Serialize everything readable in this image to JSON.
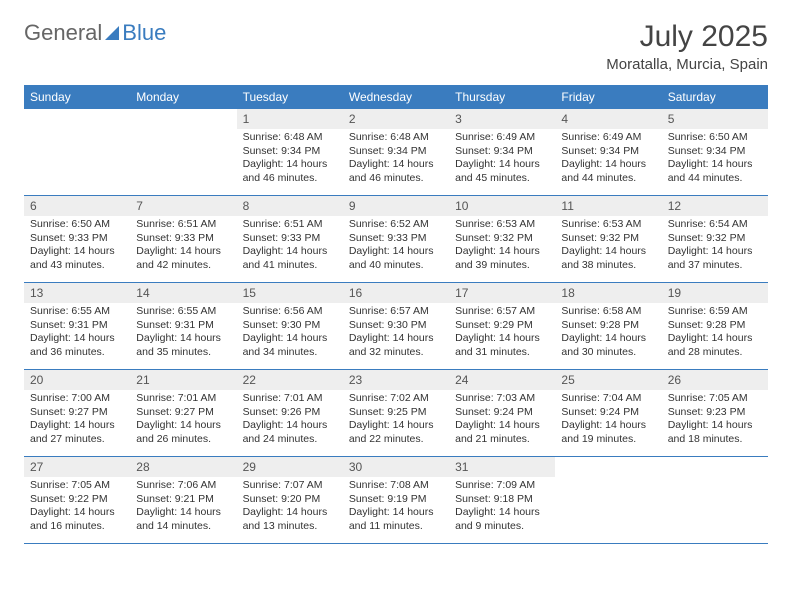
{
  "logo": {
    "part1": "General",
    "part2": "Blue"
  },
  "title": "July 2025",
  "location": "Moratalla, Murcia, Spain",
  "colors": {
    "header_bg": "#3a7cbf",
    "header_text": "#ffffff",
    "daynum_bg": "#eeeeee",
    "border": "#3a7cbf",
    "text": "#333333"
  },
  "daynames": [
    "Sunday",
    "Monday",
    "Tuesday",
    "Wednesday",
    "Thursday",
    "Friday",
    "Saturday"
  ],
  "weeks": [
    [
      null,
      null,
      {
        "n": "1",
        "sr": "6:48 AM",
        "ss": "9:34 PM",
        "dl": "14 hours and 46 minutes."
      },
      {
        "n": "2",
        "sr": "6:48 AM",
        "ss": "9:34 PM",
        "dl": "14 hours and 46 minutes."
      },
      {
        "n": "3",
        "sr": "6:49 AM",
        "ss": "9:34 PM",
        "dl": "14 hours and 45 minutes."
      },
      {
        "n": "4",
        "sr": "6:49 AM",
        "ss": "9:34 PM",
        "dl": "14 hours and 44 minutes."
      },
      {
        "n": "5",
        "sr": "6:50 AM",
        "ss": "9:34 PM",
        "dl": "14 hours and 44 minutes."
      }
    ],
    [
      {
        "n": "6",
        "sr": "6:50 AM",
        "ss": "9:33 PM",
        "dl": "14 hours and 43 minutes."
      },
      {
        "n": "7",
        "sr": "6:51 AM",
        "ss": "9:33 PM",
        "dl": "14 hours and 42 minutes."
      },
      {
        "n": "8",
        "sr": "6:51 AM",
        "ss": "9:33 PM",
        "dl": "14 hours and 41 minutes."
      },
      {
        "n": "9",
        "sr": "6:52 AM",
        "ss": "9:33 PM",
        "dl": "14 hours and 40 minutes."
      },
      {
        "n": "10",
        "sr": "6:53 AM",
        "ss": "9:32 PM",
        "dl": "14 hours and 39 minutes."
      },
      {
        "n": "11",
        "sr": "6:53 AM",
        "ss": "9:32 PM",
        "dl": "14 hours and 38 minutes."
      },
      {
        "n": "12",
        "sr": "6:54 AM",
        "ss": "9:32 PM",
        "dl": "14 hours and 37 minutes."
      }
    ],
    [
      {
        "n": "13",
        "sr": "6:55 AM",
        "ss": "9:31 PM",
        "dl": "14 hours and 36 minutes."
      },
      {
        "n": "14",
        "sr": "6:55 AM",
        "ss": "9:31 PM",
        "dl": "14 hours and 35 minutes."
      },
      {
        "n": "15",
        "sr": "6:56 AM",
        "ss": "9:30 PM",
        "dl": "14 hours and 34 minutes."
      },
      {
        "n": "16",
        "sr": "6:57 AM",
        "ss": "9:30 PM",
        "dl": "14 hours and 32 minutes."
      },
      {
        "n": "17",
        "sr": "6:57 AM",
        "ss": "9:29 PM",
        "dl": "14 hours and 31 minutes."
      },
      {
        "n": "18",
        "sr": "6:58 AM",
        "ss": "9:28 PM",
        "dl": "14 hours and 30 minutes."
      },
      {
        "n": "19",
        "sr": "6:59 AM",
        "ss": "9:28 PM",
        "dl": "14 hours and 28 minutes."
      }
    ],
    [
      {
        "n": "20",
        "sr": "7:00 AM",
        "ss": "9:27 PM",
        "dl": "14 hours and 27 minutes."
      },
      {
        "n": "21",
        "sr": "7:01 AM",
        "ss": "9:27 PM",
        "dl": "14 hours and 26 minutes."
      },
      {
        "n": "22",
        "sr": "7:01 AM",
        "ss": "9:26 PM",
        "dl": "14 hours and 24 minutes."
      },
      {
        "n": "23",
        "sr": "7:02 AM",
        "ss": "9:25 PM",
        "dl": "14 hours and 22 minutes."
      },
      {
        "n": "24",
        "sr": "7:03 AM",
        "ss": "9:24 PM",
        "dl": "14 hours and 21 minutes."
      },
      {
        "n": "25",
        "sr": "7:04 AM",
        "ss": "9:24 PM",
        "dl": "14 hours and 19 minutes."
      },
      {
        "n": "26",
        "sr": "7:05 AM",
        "ss": "9:23 PM",
        "dl": "14 hours and 18 minutes."
      }
    ],
    [
      {
        "n": "27",
        "sr": "7:05 AM",
        "ss": "9:22 PM",
        "dl": "14 hours and 16 minutes."
      },
      {
        "n": "28",
        "sr": "7:06 AM",
        "ss": "9:21 PM",
        "dl": "14 hours and 14 minutes."
      },
      {
        "n": "29",
        "sr": "7:07 AM",
        "ss": "9:20 PM",
        "dl": "14 hours and 13 minutes."
      },
      {
        "n": "30",
        "sr": "7:08 AM",
        "ss": "9:19 PM",
        "dl": "14 hours and 11 minutes."
      },
      {
        "n": "31",
        "sr": "7:09 AM",
        "ss": "9:18 PM",
        "dl": "14 hours and 9 minutes."
      },
      null,
      null
    ]
  ],
  "labels": {
    "sunrise": "Sunrise:",
    "sunset": "Sunset:",
    "daylight": "Daylight:"
  }
}
